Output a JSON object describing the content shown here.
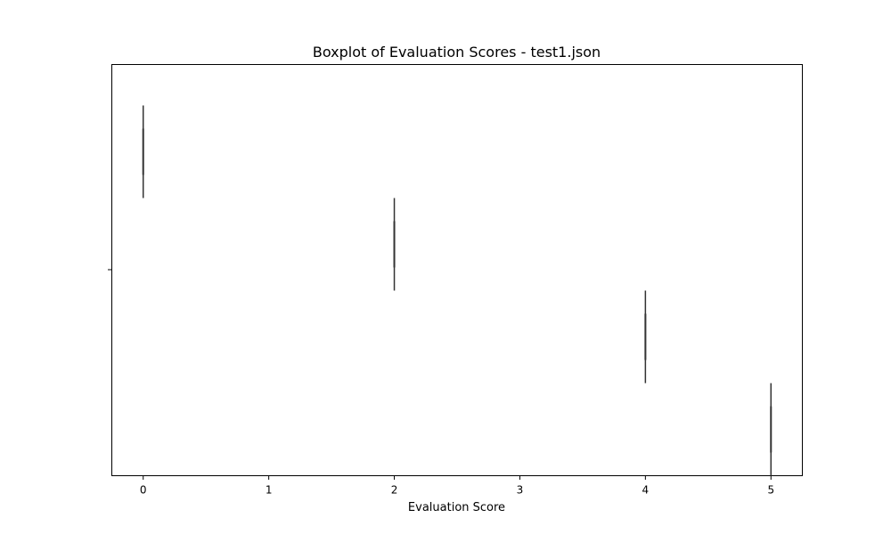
{
  "chart_data": {
    "type": "boxplot",
    "title": "Boxplot of Evaluation Scores - test1.json",
    "xlabel": "Evaluation Score",
    "ylabel": "",
    "xlim": [
      -0.25,
      5.25
    ],
    "xticks": [
      0,
      1,
      2,
      3,
      4,
      5
    ],
    "xtick_labels": [
      "0",
      "1",
      "2",
      "3",
      "4",
      "5"
    ],
    "orientation": "horizontal",
    "grid": false,
    "colors": {
      "box_stroke": "#333333",
      "axes": "#000000",
      "background": "#ffffff"
    },
    "boxes": [
      {
        "value": 0,
        "whisker_low": 0,
        "q1": 0,
        "median": 0,
        "q3": 0,
        "whisker_high": 0
      },
      {
        "value": 2,
        "whisker_low": 2,
        "q1": 2,
        "median": 2,
        "q3": 2,
        "whisker_high": 2
      },
      {
        "value": 4,
        "whisker_low": 4,
        "q1": 4,
        "median": 4,
        "q3": 4,
        "whisker_high": 4
      },
      {
        "value": 5,
        "whisker_low": 5,
        "q1": 5,
        "median": 5,
        "q3": 5,
        "whisker_high": 5
      }
    ]
  }
}
